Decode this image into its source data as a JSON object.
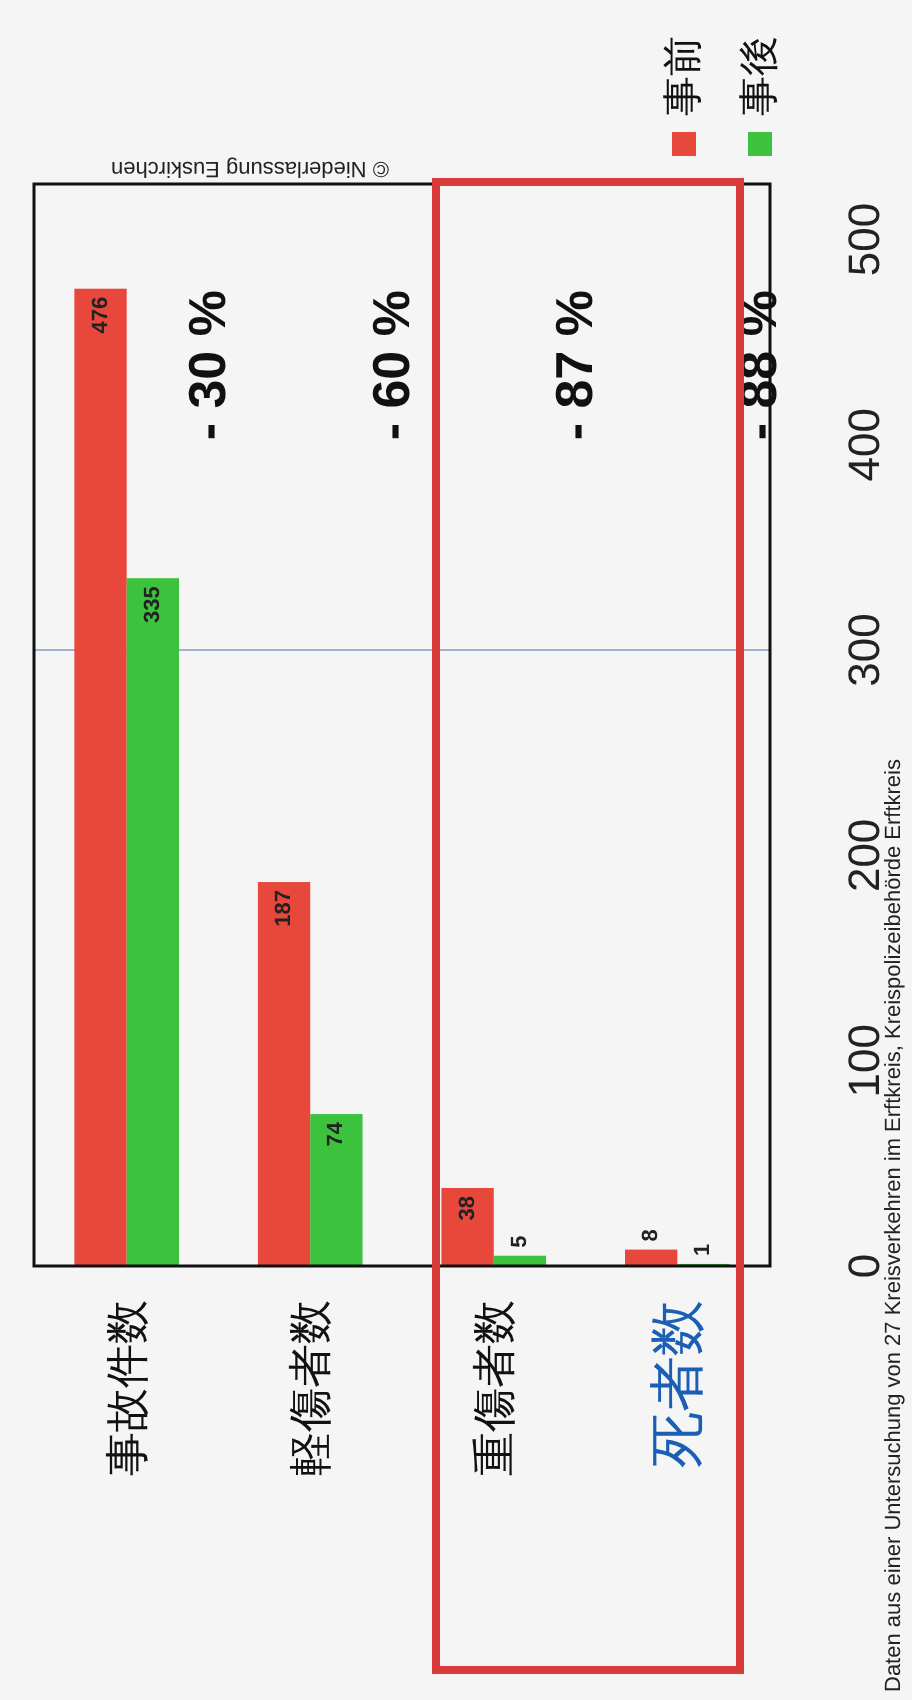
{
  "chart_data": {
    "type": "bar",
    "categories": [
      "事故件数",
      "軽傷者数",
      "重傷者数",
      "死者数"
    ],
    "series": [
      {
        "name": "事前",
        "color": "#e8473c",
        "values": [
          476,
          187,
          38,
          8
        ]
      },
      {
        "name": "事後",
        "color": "#3cc23c",
        "values": [
          335,
          74,
          5,
          1
        ]
      }
    ],
    "ylim": [
      0,
      527
    ],
    "yticks": [
      0,
      100,
      200,
      300,
      400,
      500
    ],
    "data_labels": true,
    "legend": "top right",
    "ref_lines": [
      {
        "axis": "y",
        "value": 300,
        "color": "#9fb3cc"
      }
    ],
    "annotations": [
      "- 30 %",
      "- 60 %",
      "- 87 %",
      "- 88 %",
      "© Niederlassung Euskirchen",
      "Daten aus einer Untersuchung von 27 Kreisverkehren im Erftkreis, Kreispolizeibehörde Erftkreis"
    ]
  }
}
